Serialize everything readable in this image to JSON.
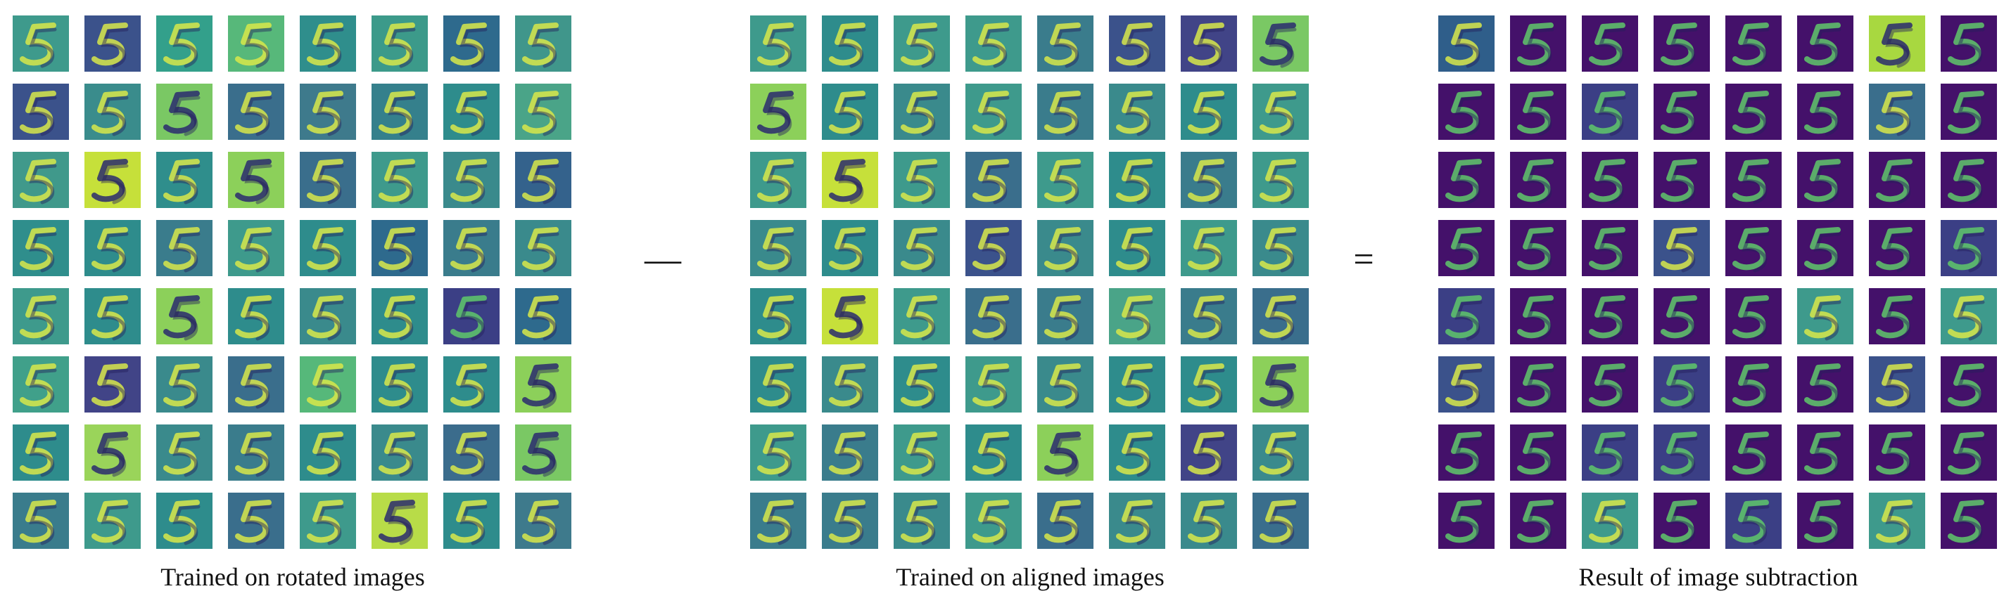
{
  "panels": [
    {
      "caption": "Trained on rotated images",
      "background": "#3b8b8e",
      "tiles": [
        [
          "#3e9a8c",
          "#3b528b",
          "#33a08b",
          "#57b87a",
          "#2f8e8c",
          "#3c9a8a",
          "#2e6a8d",
          "#40968b"
        ],
        [
          "#3b528b",
          "#3a8c8c",
          "#7ac864",
          "#3a6e8c",
          "#3e7a8c",
          "#35808c",
          "#2e8c8c",
          "#4aa488"
        ],
        [
          "#40998b",
          "#c6e03a",
          "#2f8e8c",
          "#8cd05a",
          "#3a6e8c",
          "#3e9a8c",
          "#3a8a8c",
          "#34628c"
        ],
        [
          "#2f8e8c",
          "#2e8c8c",
          "#3a7c8c",
          "#3e9a8c",
          "#2e8c8c",
          "#2e6a8d",
          "#3a7c8c",
          "#3a8a8c"
        ],
        [
          "#3e9a8c",
          "#2e8c8c",
          "#8cd05a",
          "#2e8c8c",
          "#3a8a8c",
          "#2e8c8c",
          "#3b3f85",
          "#2e6a8d"
        ],
        [
          "#40a08a",
          "#414487",
          "#3a8a8c",
          "#3a6e8c",
          "#56b87a",
          "#2e8c8c",
          "#2e8c8c",
          "#8cd05a"
        ],
        [
          "#2e8c8c",
          "#9ad45a",
          "#3a8a8c",
          "#3a7c8c",
          "#2e8c8c",
          "#3a8a8c",
          "#3b6c8c",
          "#7ac864"
        ],
        [
          "#3a7c8c",
          "#3e9a8c",
          "#2e8c8c",
          "#3a6e8c",
          "#3e9a8c",
          "#b8dc48",
          "#2e8c8c",
          "#3e7a8c"
        ]
      ]
    },
    {
      "caption": "Trained on aligned images",
      "background": "#3b8b8e",
      "tiles": [
        [
          "#3e9a8c",
          "#2e8c8c",
          "#3e9a8c",
          "#3e9a8c",
          "#3a7c8c",
          "#3b528b",
          "#414487",
          "#7ac864"
        ],
        [
          "#8cd05a",
          "#2e8c8c",
          "#3a8a8c",
          "#3e9a8c",
          "#3a7c8c",
          "#3a8a8c",
          "#2e8c8c",
          "#3e9a8c"
        ],
        [
          "#3e9a8c",
          "#c6e03a",
          "#3e9a8c",
          "#3a6e8c",
          "#3e9a8c",
          "#2e8c8c",
          "#3a7c8c",
          "#3e9a8c"
        ],
        [
          "#3a8a8c",
          "#2e8c8c",
          "#3a8a8c",
          "#3b528b",
          "#3a8a8c",
          "#2e8c8c",
          "#3e9a8c",
          "#3a8a8c"
        ],
        [
          "#2e8c8c",
          "#c6e03a",
          "#3e9a8c",
          "#3a6e8c",
          "#3a7c8c",
          "#4aa488",
          "#3a7c8c",
          "#3a6e8c"
        ],
        [
          "#2e8c8c",
          "#3a8a8c",
          "#2e8c8c",
          "#3e9a8c",
          "#3a8a8c",
          "#2e8c8c",
          "#2e8c8c",
          "#8cd05a"
        ],
        [
          "#3e9a8c",
          "#3a7c8c",
          "#3e9a8c",
          "#2e8c8c",
          "#8cd05a",
          "#2e8c8c",
          "#414487",
          "#3a8a8c"
        ],
        [
          "#3a7c8c",
          "#3a7c8c",
          "#3a8a8c",
          "#3e9a8c",
          "#3a6e8c",
          "#3a8a8c",
          "#3a8a8c",
          "#3a6e8c"
        ]
      ]
    },
    {
      "caption": "Result of image subtraction",
      "background": "#3a1a5a",
      "tiles": [
        [
          "#2f5e8a",
          "#44116a",
          "#44116a",
          "#44116a",
          "#44116a",
          "#44116a",
          "#a8d840",
          "#44116a"
        ],
        [
          "#44116a",
          "#44116a",
          "#3b3f85",
          "#44116a",
          "#44116a",
          "#44116a",
          "#3a6e8c",
          "#44116a"
        ],
        [
          "#44116a",
          "#44116a",
          "#44116a",
          "#44116a",
          "#44116a",
          "#44116a",
          "#44116a",
          "#44116a"
        ],
        [
          "#44116a",
          "#44116a",
          "#44116a",
          "#3b528b",
          "#44116a",
          "#44116a",
          "#44116a",
          "#3b3f85"
        ],
        [
          "#3b3f85",
          "#44116a",
          "#44116a",
          "#44116a",
          "#44116a",
          "#3e9a8c",
          "#44116a",
          "#3e9a8c"
        ],
        [
          "#3b528b",
          "#44116a",
          "#44116a",
          "#3b3f85",
          "#44116a",
          "#44116a",
          "#3b528b",
          "#44116a"
        ],
        [
          "#44116a",
          "#44116a",
          "#3b3f85",
          "#3b3f85",
          "#44116a",
          "#44116a",
          "#44116a",
          "#44116a"
        ],
        [
          "#44116a",
          "#44116a",
          "#3e9a8c",
          "#44116a",
          "#3b3f85",
          "#44116a",
          "#3e9a8c",
          "#44116a"
        ]
      ]
    }
  ],
  "operators": {
    "minus": "—",
    "equals": "="
  }
}
